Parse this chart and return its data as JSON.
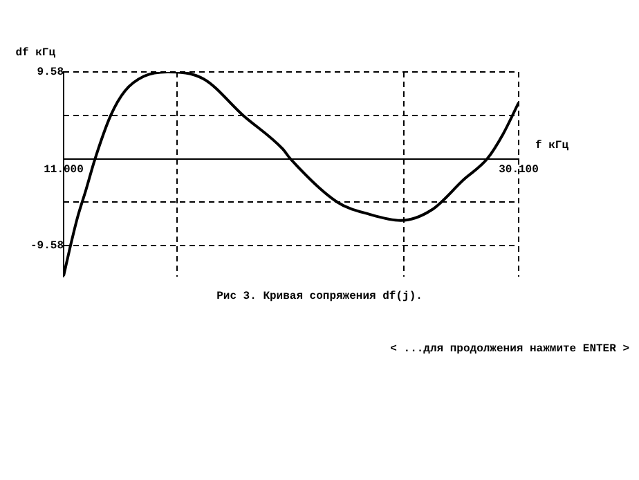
{
  "chart_data": {
    "type": "line",
    "xlabel": "f кГц",
    "ylabel": "df кГц",
    "annotations": [
      "Рис 3. Кривая сопряжения df(j).",
      "< ...для продолжения нажмите ENTER >"
    ],
    "x": [
      11,
      11.26,
      11.59,
      11.93,
      12.32,
      12.98,
      13.58,
      14.37,
      15.36,
      16.88,
      18.53,
      20.19,
      20.52,
      22.5,
      23.82,
      25.15,
      26.47,
      27.79,
      28.78,
      29.44,
      30.1
    ],
    "series": [
      {
        "color": "#000000",
        "values": [
          -12.9,
          -9.9,
          -6.4,
          -3.5,
          0,
          4.8,
          7.5,
          9.1,
          9.58,
          8.8,
          4.8,
          1.1,
          0,
          -4.8,
          -6.1,
          -6.8,
          -5.6,
          -2.3,
          0,
          2.7,
          6.2
        ]
      }
    ],
    "xlim": [
      11,
      30.1
    ],
    "xticks": [
      {
        "value": 11,
        "label": "11.000"
      },
      {
        "value": 30.1,
        "label": "30.100"
      }
    ],
    "ylim": [
      -13,
      9.58
    ],
    "yticks": [
      {
        "value": -9.58,
        "label": "-9.58"
      },
      {
        "value": -4.79,
        "label": null
      },
      {
        "value": 4.79,
        "label": null
      },
      {
        "value": 9.58,
        "label": "9.58"
      }
    ],
    "ref_lines": [
      {
        "axis": "x",
        "value": 15.76,
        "line_style": "dashed"
      },
      {
        "axis": "x",
        "value": 25.28,
        "line_style": "dashed"
      }
    ],
    "grid": true,
    "legend": false,
    "marker": "none",
    "line_style": "solid"
  }
}
